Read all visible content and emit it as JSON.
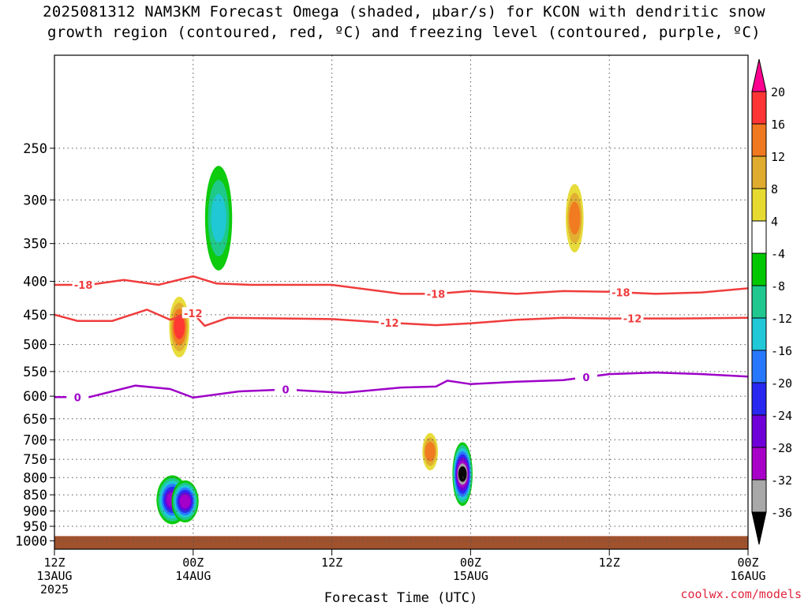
{
  "title_line1": "2025081312 NAM3KM Forecast Omega (shaded, μbar/s) for KCON with dendritic snow",
  "title_line2": "growth region (contoured, red, ºC) and freezing level (contoured, purple, ºC)",
  "credit": "coolwx.com/models",
  "chart_data": {
    "type": "time-height contour",
    "xlabel": "Forecast Time (UTC)",
    "x_ticks": [
      {
        "hour": 0,
        "lines": [
          "12Z",
          "13AUG",
          "2025"
        ]
      },
      {
        "hour": 12,
        "lines": [
          "00Z",
          "14AUG"
        ]
      },
      {
        "hour": 24,
        "lines": [
          "12Z"
        ]
      },
      {
        "hour": 36,
        "lines": [
          "00Z",
          "15AUG"
        ]
      },
      {
        "hour": 48,
        "lines": [
          "12Z"
        ]
      },
      {
        "hour": 60,
        "lines": [
          "00Z",
          "16AUG"
        ]
      }
    ],
    "xlim_hours": [
      0,
      60
    ],
    "ylabel": "",
    "y_scale": "log-pressure (hPa, inverted)",
    "ylim_hpa": [
      1030,
      180
    ],
    "y_ticks": [
      250,
      300,
      350,
      400,
      450,
      500,
      550,
      600,
      650,
      700,
      750,
      800,
      850,
      900,
      950,
      1000
    ],
    "colorbar": {
      "labels": [
        "20",
        "16",
        "12",
        "8",
        "4",
        "-4",
        "-8",
        "-12",
        "-16",
        "-20",
        "-24",
        "-28",
        "-32",
        "-36"
      ],
      "colors": [
        "#ff0090",
        "#ff3535",
        "#f07820",
        "#e0ac30",
        "#e6da30",
        "#ffffff",
        "#00c800",
        "#20c890",
        "#20c8d8",
        "#2878ff",
        "#2828f0",
        "#7000d8",
        "#a800c8",
        "#a8a8a8",
        "#000000"
      ]
    },
    "contour_dendritic_18": {
      "label": "-18",
      "color": "#f03c3c",
      "points": [
        [
          0,
          405
        ],
        [
          3,
          405
        ],
        [
          6,
          398
        ],
        [
          9,
          405
        ],
        [
          12,
          393
        ],
        [
          14,
          403
        ],
        [
          17,
          405
        ],
        [
          20,
          405
        ],
        [
          24,
          405
        ],
        [
          30,
          418
        ],
        [
          33,
          418
        ],
        [
          36,
          414
        ],
        [
          40,
          418
        ],
        [
          44,
          414
        ],
        [
          48,
          415
        ],
        [
          52,
          418
        ],
        [
          56,
          416
        ],
        [
          60,
          410
        ]
      ],
      "labels_at_hours": [
        2.5,
        33,
        49
      ]
    },
    "contour_dendritic_12": {
      "label": "-12",
      "color": "#f03c3c",
      "points": [
        [
          0,
          450
        ],
        [
          2,
          460
        ],
        [
          5,
          460
        ],
        [
          8,
          442
        ],
        [
          10,
          458
        ],
        [
          12,
          448
        ],
        [
          13,
          468
        ],
        [
          15,
          455
        ],
        [
          20,
          456
        ],
        [
          24,
          457
        ],
        [
          28,
          462
        ],
        [
          33,
          467
        ],
        [
          36,
          464
        ],
        [
          40,
          458
        ],
        [
          44,
          455
        ],
        [
          48,
          456
        ],
        [
          54,
          456
        ],
        [
          60,
          455
        ]
      ],
      "labels_at_hours": [
        12,
        29,
        50
      ]
    },
    "contour_freezing": {
      "label": "0",
      "color": "#9e00c8",
      "points": [
        [
          0,
          602
        ],
        [
          3,
          602
        ],
        [
          7,
          578
        ],
        [
          10,
          585
        ],
        [
          12,
          603
        ],
        [
          16,
          590
        ],
        [
          20,
          586
        ],
        [
          25,
          593
        ],
        [
          30,
          582
        ],
        [
          33,
          580
        ],
        [
          34,
          568
        ],
        [
          36,
          575
        ],
        [
          40,
          570
        ],
        [
          44,
          567
        ],
        [
          48,
          555
        ],
        [
          52,
          552
        ],
        [
          56,
          555
        ],
        [
          60,
          560
        ]
      ],
      "labels_at_hours": [
        2,
        20,
        46
      ]
    },
    "omega_features": [
      {
        "hour": 10.2,
        "hpa": 865,
        "rh": 1.1,
        "rp": 65,
        "value": -30
      },
      {
        "hour": 11.3,
        "hpa": 870,
        "rh": 0.9,
        "rp": 55,
        "value": -30
      },
      {
        "hour": 10.8,
        "hpa": 470,
        "rh": 0.6,
        "rp": 45,
        "value": 18
      },
      {
        "hour": 14.2,
        "hpa": 320,
        "rh": 0.9,
        "rp": 55,
        "value": -12
      },
      {
        "hour": 35.3,
        "hpa": 790,
        "rh": 0.6,
        "rp": 80,
        "value": -36
      },
      {
        "hour": 32.5,
        "hpa": 730,
        "rh": 0.4,
        "rp": 40,
        "value": 14
      },
      {
        "hour": 45.0,
        "hpa": 320,
        "rh": 0.5,
        "rp": 35,
        "value": 12
      }
    ],
    "ground": {
      "color": "#a0522d",
      "top_hpa": 1000
    }
  }
}
